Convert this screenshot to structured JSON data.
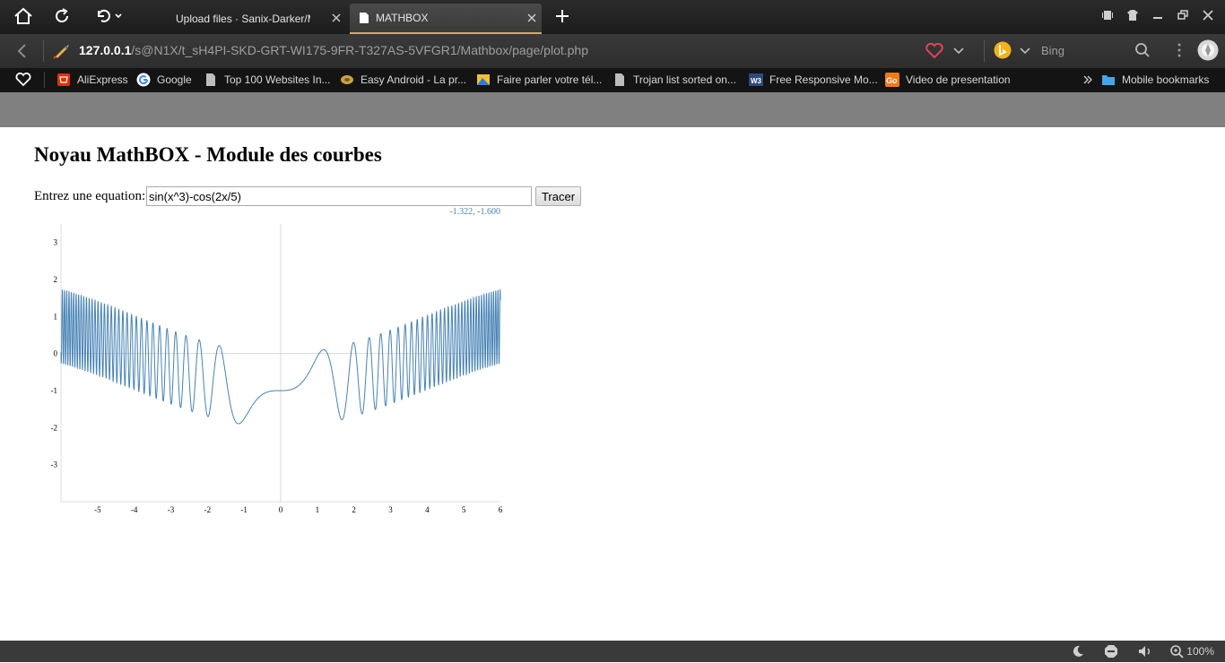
{
  "browser": {
    "tabs": [
      {
        "title": "Upload files · Sanix-Darker/M..."
      },
      {
        "title": "MATHBOX"
      }
    ],
    "url_host": "127.0.0.1",
    "url_path": "/s@N1X/t_sH4PI-SKD-GRT-WI175-9FR-T327AS-5VFGR1/Mathbox/page/plot.php",
    "search_engine": "Bing",
    "bookmarks": [
      {
        "label": "AliExpress",
        "icon": "aliexpress-icon"
      },
      {
        "label": "Google",
        "icon": "google-icon"
      },
      {
        "label": "Top 100 Websites In...",
        "icon": "page-icon"
      },
      {
        "label": "Easy Android - La pr...",
        "icon": "easy-android-icon"
      },
      {
        "label": "Faire parler votre tél...",
        "icon": "image-icon"
      },
      {
        "label": "Trojan list sorted on...",
        "icon": "page-icon"
      },
      {
        "label": "Free Responsive Mo...",
        "icon": "w3-icon"
      },
      {
        "label": "Video de presentation",
        "icon": "go-icon"
      }
    ],
    "mobile_bookmarks": "Mobile bookmarks",
    "zoom": "100%",
    "colors": {
      "tab_accent": "#d9a85c",
      "curve": "#4682b4"
    }
  },
  "page": {
    "title": "Noyau MathBOX - Module des courbes",
    "equation_label": "Entrez une equation:",
    "equation_value": "sin(x^3)-cos(2x/5)",
    "button_label": "Tracer",
    "coord_readout": "-1.322, -1.600"
  },
  "chart_data": {
    "type": "line",
    "title": "",
    "xlabel": "",
    "ylabel": "",
    "function": "sin(x^3)-cos(2x/5)",
    "xlim": [
      -6,
      6
    ],
    "ylim": [
      -4,
      3.5
    ],
    "xticks": [
      -5,
      -4,
      -3,
      -2,
      -1,
      0,
      1,
      2,
      3,
      4,
      5,
      6
    ],
    "yticks": [
      -3,
      -2,
      -1,
      0,
      1,
      2,
      3
    ],
    "grid": false,
    "series": [
      {
        "color": "#4682b4"
      }
    ]
  }
}
